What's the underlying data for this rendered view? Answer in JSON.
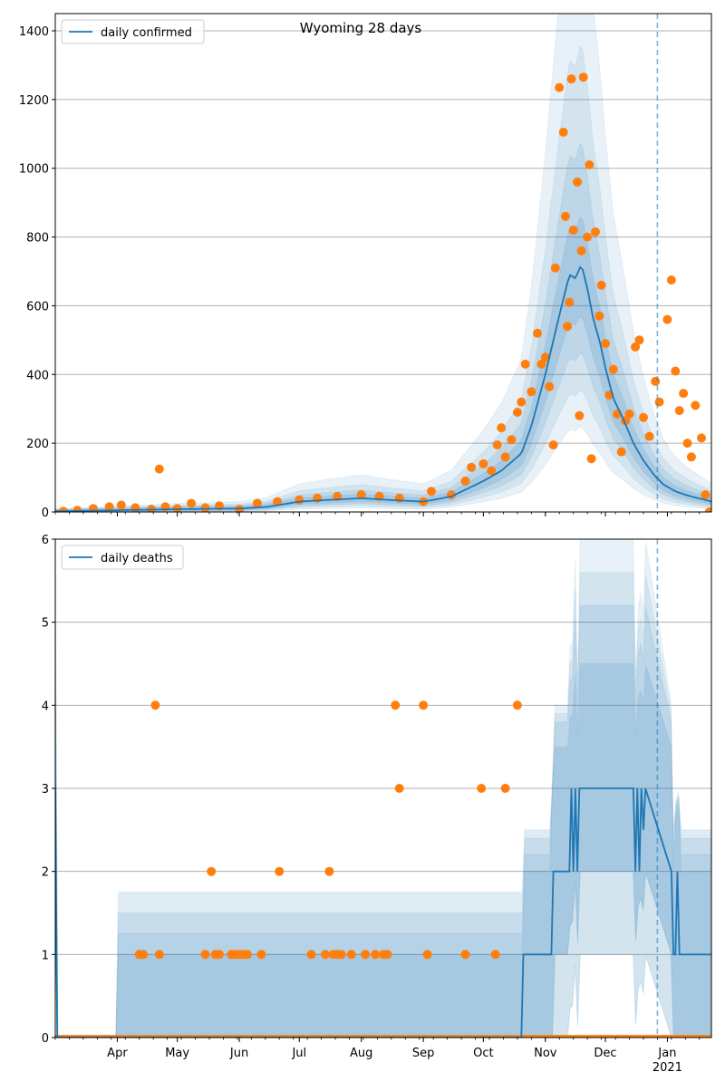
{
  "chart_data": [
    {
      "type": "line",
      "title": "Wyoming 28 days",
      "xlabel": "",
      "ylabel": "",
      "ylim": [
        0,
        1450
      ],
      "yticks": [
        0,
        200,
        400,
        600,
        800,
        1000,
        1200,
        1400
      ],
      "grid": "horizontal",
      "legend": {
        "position": "top-left",
        "entries": [
          "daily confirmed"
        ]
      },
      "vline_date": "2020-12-27",
      "series": [
        {
          "name": "daily confirmed",
          "kind": "model-median-with-bands",
          "x": [
            "2020-03-01",
            "2020-04-01",
            "2020-05-01",
            "2020-06-01",
            "2020-06-15",
            "2020-07-01",
            "2020-07-15",
            "2020-08-01",
            "2020-08-15",
            "2020-09-01",
            "2020-09-15",
            "2020-10-01",
            "2020-10-10",
            "2020-10-20",
            "2020-10-25",
            "2020-11-01",
            "2020-11-05",
            "2020-11-10",
            "2020-11-13",
            "2020-11-16",
            "2020-11-19",
            "2020-11-22",
            "2020-11-25",
            "2020-11-28",
            "2020-12-01",
            "2020-12-05",
            "2020-12-10",
            "2020-12-15",
            "2020-12-20",
            "2020-12-25",
            "2020-12-30",
            "2021-01-05",
            "2021-01-10",
            "2021-01-15",
            "2021-01-20",
            "2021-01-23"
          ],
          "median": [
            2,
            5,
            8,
            10,
            15,
            30,
            35,
            40,
            35,
            30,
            45,
            90,
            120,
            170,
            250,
            400,
            500,
            620,
            690,
            680,
            720,
            650,
            560,
            500,
            420,
            330,
            270,
            200,
            150,
            110,
            80,
            60,
            50,
            42,
            35,
            30
          ]
        },
        {
          "name": "observed",
          "kind": "scatter",
          "points": [
            [
              "2020-03-05",
              2
            ],
            [
              "2020-03-12",
              5
            ],
            [
              "2020-03-20",
              10
            ],
            [
              "2020-03-28",
              15
            ],
            [
              "2020-04-03",
              20
            ],
            [
              "2020-04-10",
              12
            ],
            [
              "2020-04-18",
              8
            ],
            [
              "2020-04-22",
              125
            ],
            [
              "2020-04-25",
              15
            ],
            [
              "2020-05-01",
              10
            ],
            [
              "2020-05-08",
              25
            ],
            [
              "2020-05-15",
              12
            ],
            [
              "2020-05-22",
              18
            ],
            [
              "2020-06-01",
              8
            ],
            [
              "2020-06-10",
              25
            ],
            [
              "2020-06-20",
              30
            ],
            [
              "2020-07-01",
              35
            ],
            [
              "2020-07-10",
              40
            ],
            [
              "2020-07-20",
              45
            ],
            [
              "2020-08-01",
              50
            ],
            [
              "2020-08-10",
              45
            ],
            [
              "2020-08-20",
              40
            ],
            [
              "2020-09-01",
              30
            ],
            [
              "2020-09-05",
              60
            ],
            [
              "2020-09-15",
              50
            ],
            [
              "2020-09-22",
              90
            ],
            [
              "2020-09-25",
              130
            ],
            [
              "2020-10-01",
              140
            ],
            [
              "2020-10-05",
              120
            ],
            [
              "2020-10-08",
              195
            ],
            [
              "2020-10-10",
              245
            ],
            [
              "2020-10-12",
              160
            ],
            [
              "2020-10-15",
              210
            ],
            [
              "2020-10-18",
              290
            ],
            [
              "2020-10-20",
              320
            ],
            [
              "2020-10-22",
              430
            ],
            [
              "2020-10-25",
              350
            ],
            [
              "2020-10-28",
              520
            ],
            [
              "2020-10-30",
              430
            ],
            [
              "2020-11-01",
              450
            ],
            [
              "2020-11-03",
              365
            ],
            [
              "2020-11-05",
              195
            ],
            [
              "2020-11-06",
              710
            ],
            [
              "2020-11-08",
              1235
            ],
            [
              "2020-11-10",
              1105
            ],
            [
              "2020-11-11",
              860
            ],
            [
              "2020-11-12",
              540
            ],
            [
              "2020-11-13",
              610
            ],
            [
              "2020-11-14",
              1260
            ],
            [
              "2020-11-15",
              820
            ],
            [
              "2020-11-17",
              960
            ],
            [
              "2020-11-18",
              280
            ],
            [
              "2020-11-19",
              760
            ],
            [
              "2020-11-20",
              1265
            ],
            [
              "2020-11-22",
              800
            ],
            [
              "2020-11-23",
              1010
            ],
            [
              "2020-11-24",
              155
            ],
            [
              "2020-11-26",
              815
            ],
            [
              "2020-11-28",
              570
            ],
            [
              "2020-11-29",
              660
            ],
            [
              "2020-12-01",
              490
            ],
            [
              "2020-12-03",
              340
            ],
            [
              "2020-12-05",
              415
            ],
            [
              "2020-12-07",
              285
            ],
            [
              "2020-12-09",
              175
            ],
            [
              "2020-12-11",
              265
            ],
            [
              "2020-12-13",
              285
            ],
            [
              "2020-12-16",
              480
            ],
            [
              "2020-12-18",
              500
            ],
            [
              "2020-12-20",
              275
            ],
            [
              "2020-12-23",
              220
            ],
            [
              "2020-12-26",
              380
            ],
            [
              "2020-12-28",
              320
            ],
            [
              "2021-01-01",
              560
            ],
            [
              "2021-01-03",
              675
            ],
            [
              "2021-01-05",
              410
            ],
            [
              "2021-01-07",
              295
            ],
            [
              "2021-01-09",
              345
            ],
            [
              "2021-01-11",
              200
            ],
            [
              "2021-01-13",
              160
            ],
            [
              "2021-01-15",
              310
            ],
            [
              "2021-01-18",
              215
            ],
            [
              "2021-01-20",
              50
            ],
            [
              "2021-01-22",
              0
            ]
          ]
        }
      ]
    },
    {
      "type": "line",
      "title": "",
      "xlabel": "",
      "ylabel": "",
      "ylim": [
        0,
        6
      ],
      "yticks": [
        0,
        1,
        2,
        3,
        4,
        5,
        6
      ],
      "grid": "horizontal",
      "legend": {
        "position": "top-left",
        "entries": [
          "daily deaths"
        ]
      },
      "vline_date": "2020-12-27",
      "x_ticks": [
        "Apr",
        "May",
        "Jun",
        "Jul",
        "Aug",
        "Sep",
        "Oct",
        "Nov",
        "Dec",
        "Jan"
      ],
      "x_year_label": "2021",
      "series": [
        {
          "name": "daily deaths",
          "kind": "model-median-with-bands",
          "x": [
            "2020-03-01",
            "2020-03-02",
            "2020-10-20",
            "2020-10-21",
            "2020-11-04",
            "2020-11-05",
            "2020-11-13",
            "2020-11-14",
            "2020-11-15",
            "2020-11-16",
            "2020-11-17",
            "2020-11-18",
            "2020-12-15",
            "2020-12-16",
            "2020-12-17",
            "2020-12-18",
            "2020-12-19",
            "2020-12-20",
            "2020-12-21",
            "2021-01-03",
            "2021-01-04",
            "2021-01-05",
            "2021-01-06",
            "2021-01-07",
            "2021-01-23"
          ],
          "median": [
            3,
            0,
            0,
            1,
            1,
            2,
            2,
            3,
            2,
            3,
            2,
            3,
            3,
            2,
            3,
            2,
            3,
            2.5,
            3,
            2,
            1,
            1,
            2,
            1,
            1
          ]
        },
        {
          "name": "observed",
          "kind": "scatter",
          "points": [
            [
              "2020-04-12",
              1
            ],
            [
              "2020-04-14",
              1
            ],
            [
              "2020-04-20",
              4
            ],
            [
              "2020-04-22",
              1
            ],
            [
              "2020-05-15",
              1
            ],
            [
              "2020-05-18",
              2
            ],
            [
              "2020-05-20",
              1
            ],
            [
              "2020-05-22",
              1
            ],
            [
              "2020-05-28",
              1
            ],
            [
              "2020-05-30",
              1
            ],
            [
              "2020-06-01",
              1
            ],
            [
              "2020-06-03",
              1
            ],
            [
              "2020-06-05",
              1
            ],
            [
              "2020-06-12",
              1
            ],
            [
              "2020-06-21",
              2
            ],
            [
              "2020-07-07",
              1
            ],
            [
              "2020-07-14",
              1
            ],
            [
              "2020-07-16",
              2
            ],
            [
              "2020-07-18",
              1
            ],
            [
              "2020-07-20",
              1
            ],
            [
              "2020-07-22",
              1
            ],
            [
              "2020-07-27",
              1
            ],
            [
              "2020-08-03",
              1
            ],
            [
              "2020-08-08",
              1
            ],
            [
              "2020-08-12",
              1
            ],
            [
              "2020-08-14",
              1
            ],
            [
              "2020-08-18",
              4
            ],
            [
              "2020-08-20",
              3
            ],
            [
              "2020-09-01",
              4
            ],
            [
              "2020-09-03",
              1
            ],
            [
              "2020-09-22",
              1
            ],
            [
              "2020-09-30",
              3
            ],
            [
              "2020-10-07",
              1
            ],
            [
              "2020-10-12",
              3
            ],
            [
              "2020-10-18",
              4
            ]
          ]
        }
      ]
    }
  ]
}
